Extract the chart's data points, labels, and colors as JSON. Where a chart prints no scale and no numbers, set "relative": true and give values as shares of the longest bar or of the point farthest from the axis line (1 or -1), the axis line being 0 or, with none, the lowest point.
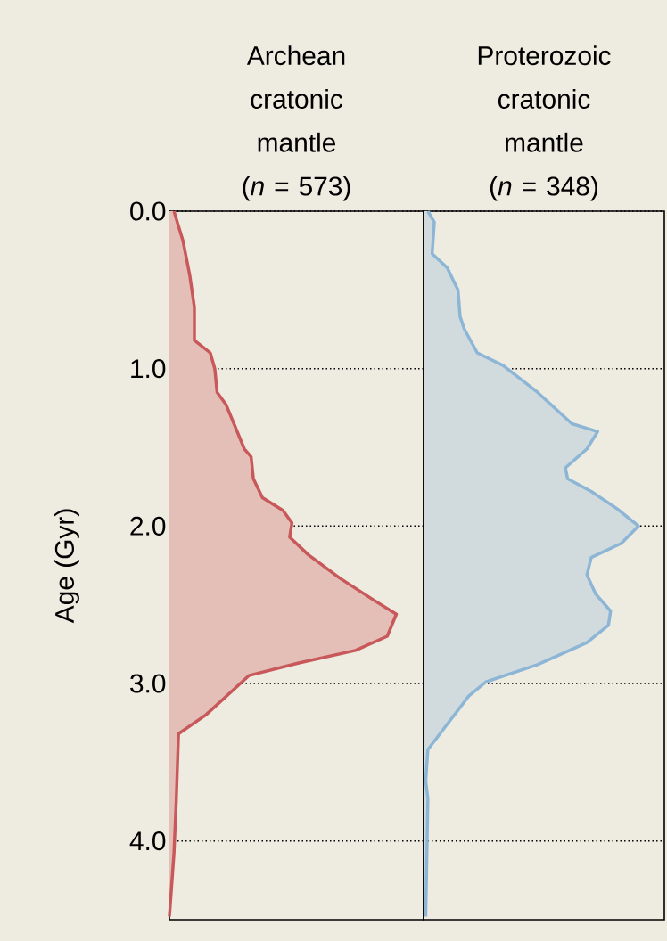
{
  "chart_data": [
    {
      "type": "area",
      "orientation": "horizontal",
      "relative": true,
      "title": "Archean cratonic mantle (*n* = 573)",
      "ylabel": "Age (Gyr)",
      "ylim": [
        4.5,
        0.0
      ],
      "yticks": [
        {
          "value": 0,
          "label": "0.0"
        },
        {
          "value": 1,
          "label": "1.0"
        },
        {
          "value": 2,
          "label": "2.0"
        },
        {
          "value": 3,
          "label": "3.0"
        },
        {
          "value": 4,
          "label": "4.0"
        }
      ],
      "grid": "y",
      "tick_labels": "y",
      "x": [
        0,
        0.19,
        0.41,
        0.61,
        0.82,
        0.9,
        1.0,
        1.15,
        1.23,
        1.37,
        1.51,
        1.56,
        1.7,
        1.82,
        1.9,
        1.98,
        2.07,
        2.18,
        2.33,
        2.47,
        2.56,
        2.7,
        2.79,
        2.87,
        2.95,
        3.03,
        3.2,
        3.32,
        3.75,
        4.08,
        4.48
      ],
      "series": [
        {
          "color": "#c8585a",
          "values": [
            0.02,
            0.06,
            0.09,
            0.11,
            0.11,
            0.18,
            0.2,
            0.21,
            0.25,
            0.29,
            0.33,
            0.36,
            0.37,
            0.41,
            0.5,
            0.54,
            0.53,
            0.61,
            0.75,
            0.9,
            1,
            0.96,
            0.82,
            0.57,
            0.35,
            0.29,
            0.16,
            0.04,
            0.03,
            0.02,
            0
          ]
        }
      ]
    },
    {
      "type": "area",
      "orientation": "horizontal",
      "relative": true,
      "title": "Proterozoic cratonic mantle (*n* = 348)",
      "ylim": [
        4.5,
        0.0
      ],
      "yticks": [
        {
          "value": 0,
          "label": null
        },
        {
          "value": 1,
          "label": null
        },
        {
          "value": 2,
          "label": null
        },
        {
          "value": 3,
          "label": null
        },
        {
          "value": 4,
          "label": null
        }
      ],
      "grid": "y",
      "tick_labels": false,
      "x": [
        0,
        0.07,
        0.27,
        0.36,
        0.5,
        0.67,
        0.75,
        0.9,
        0.98,
        1.15,
        1.35,
        1.4,
        1.51,
        1.63,
        1.7,
        1.78,
        1.89,
        2.0,
        2.11,
        2.2,
        2.31,
        2.43,
        2.54,
        2.63,
        2.74,
        2.88,
        2.99,
        3.08,
        3.42,
        3.62,
        3.73,
        4.48
      ],
      "series": [
        {
          "color": "#8db6d6",
          "values": [
            0.02,
            0.05,
            0.04,
            0.11,
            0.16,
            0.17,
            0.19,
            0.25,
            0.37,
            0.53,
            0.69,
            0.81,
            0.76,
            0.66,
            0.67,
            0.78,
            0.9,
            1,
            0.92,
            0.78,
            0.76,
            0.8,
            0.87,
            0.86,
            0.76,
            0.53,
            0.29,
            0.21,
            0.02,
            0.01,
            0.02,
            0.01
          ]
        }
      ]
    }
  ]
}
